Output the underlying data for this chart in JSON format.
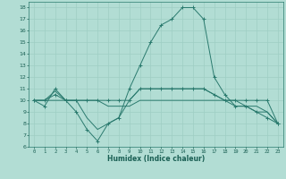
{
  "xlabel": "Humidex (Indice chaleur)",
  "background_color": "#b2ddd4",
  "line_color": "#2a7a6e",
  "xlim": [
    -0.5,
    23.5
  ],
  "ylim": [
    6,
    18.5
  ],
  "xticks": [
    0,
    1,
    2,
    3,
    4,
    5,
    6,
    7,
    8,
    9,
    10,
    11,
    12,
    13,
    14,
    15,
    16,
    17,
    18,
    19,
    20,
    21,
    22,
    23
  ],
  "yticks": [
    6,
    7,
    8,
    9,
    10,
    11,
    12,
    13,
    14,
    15,
    16,
    17,
    18
  ],
  "grid_color": "#9ecec4",
  "series": [
    {
      "x": [
        0,
        1,
        2,
        3,
        4,
        5,
        6,
        7,
        8,
        9,
        10,
        11,
        12,
        13,
        14,
        15,
        16,
        17,
        18,
        19,
        20,
        21,
        22,
        23
      ],
      "y": [
        10,
        10,
        10.5,
        10,
        10,
        10,
        10,
        10,
        10,
        10,
        11,
        11,
        11,
        11,
        11,
        11,
        11,
        10.5,
        10,
        10,
        10,
        10,
        10,
        8
      ],
      "marker": true
    },
    {
      "x": [
        0,
        1,
        2,
        3,
        4,
        5,
        6,
        7,
        8,
        9,
        10,
        11,
        12,
        13,
        14,
        15,
        16,
        17,
        18,
        19,
        20,
        21,
        22,
        23
      ],
      "y": [
        10,
        10,
        10,
        10,
        10,
        10,
        10,
        9.5,
        9.5,
        9.5,
        10,
        10,
        10,
        10,
        10,
        10,
        10,
        10,
        10,
        9.5,
        9.5,
        9.5,
        9,
        8
      ],
      "marker": false
    },
    {
      "x": [
        0,
        1,
        2,
        3,
        4,
        5,
        6,
        7,
        8,
        9,
        10,
        11,
        12,
        13,
        14,
        15,
        16,
        17,
        18,
        19,
        20,
        21,
        22,
        23
      ],
      "y": [
        10,
        9.5,
        11,
        10,
        9,
        7.5,
        6.5,
        8,
        8.5,
        11,
        13,
        15,
        16.5,
        17,
        18,
        18,
        17,
        12,
        10.5,
        9.5,
        9.5,
        9,
        8.5,
        8
      ],
      "marker": true
    },
    {
      "x": [
        0,
        1,
        2,
        3,
        4,
        5,
        6,
        7,
        8,
        9,
        10,
        11,
        12,
        13,
        14,
        15,
        16,
        17,
        18,
        19,
        20,
        21,
        22,
        23
      ],
      "y": [
        10,
        10,
        10.8,
        10,
        10,
        8.5,
        7.5,
        8,
        8.5,
        10,
        11,
        11,
        11,
        11,
        11,
        11,
        11,
        10.5,
        10,
        10,
        9.5,
        9,
        9,
        8
      ],
      "marker": false
    }
  ]
}
